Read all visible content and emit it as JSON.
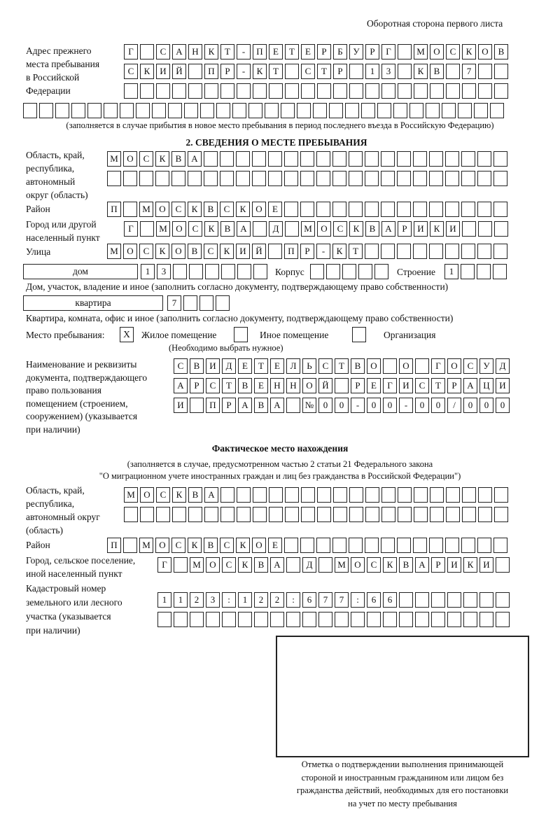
{
  "header": "Оборотная сторона первого листа",
  "prev_address": {
    "label": [
      "Адрес прежнего",
      "места пребывания",
      "в Российской",
      "Федерации"
    ],
    "rows": [
      "Г САНКТ-ПЕТЕРБУРГ МОСКОВ",
      "СКИЙ ПР-КТ СТР 13 КВ 7",
      "",
      ""
    ],
    "note": "(заполняется в случае прибытия в новое место пребывания в период последнего въезда в Российскую Федерацию)"
  },
  "section2": {
    "title": "2. СВЕДЕНИЯ О МЕСТЕ ПРЕБЫВАНИЯ",
    "region_label": [
      "Область, край,",
      "республика,",
      "автономный",
      "округ (область)"
    ],
    "region_rows": [
      "МОСКВА",
      ""
    ],
    "district_label": "Район",
    "district": "П МОСКВСКОЕ",
    "city_label": [
      "Город или другой",
      "населенный пункт"
    ],
    "city": "Г МОСКВА Д МОСКВАРИКИ",
    "street_label": "Улица",
    "street": "МОСКОВСКИЙ ПР-КТ",
    "house_type": "дом",
    "house": "13",
    "korpus_label": "Корпус",
    "korpus": "",
    "building_label": "Строение",
    "building": "1",
    "house_note": "Дом, участок, владение и иное (заполнить согласно документу, подтверждающему право собственности)",
    "flat_type": "квартира",
    "flat": "7",
    "flat_note": "Квартира, комната, офис и иное (заполнить согласно документу, подтверждающему право собственности)",
    "place_label": "Место пребывания:",
    "place_options": [
      {
        "label": "Жилое помещение",
        "mark": "X"
      },
      {
        "label": "Иное помещение",
        "mark": ""
      },
      {
        "label": "Организация",
        "mark": ""
      }
    ],
    "place_note": "(Необходимо выбрать нужное)",
    "doc_label": [
      "Наименование и реквизиты",
      "документа, подтверждающего",
      "право пользования",
      "помещением (строением,",
      "сооружением) (указывается",
      "при наличии)"
    ],
    "doc_rows": [
      "СВИДЕТЕЛЬСТВО О ГОСУД",
      "АРСТВЕННОЙ РЕГИСТРАЦИ",
      "И ПРАВА №00-00-00/000"
    ]
  },
  "actual": {
    "title": "Фактическое место нахождения",
    "note": [
      "(заполняется в случае, предусмотренном частью 2 статьи 21 Федерального закона",
      "\"О миграционном учете иностранных граждан и лиц без гражданства в Российской Федерации\")"
    ],
    "region_label": [
      "Область, край,",
      "республика,",
      "автономный округ",
      "(область)"
    ],
    "region_rows": [
      "МОСКВА",
      ""
    ],
    "district_label": "Район",
    "district": "П МОСКВСКОЕ",
    "city_label": [
      "Город, сельское поселение,",
      "иной населенный пункт"
    ],
    "city": "Г МОСКВА Д МОСКВАРИКИ",
    "cadastral_label": [
      "Кадастровый номер",
      "земельного или лесного",
      "участка (указывается",
      "при наличии)"
    ],
    "cadastral_rows": [
      "1123:122:677:66",
      ""
    ]
  },
  "confirmation_note": [
    "Отметка о подтверждении выполнения принимающей",
    "стороной и иностранным гражданином или лицом без",
    "гражданства действий, необходимых для его постановки",
    "на учет по месту пребывания"
  ]
}
